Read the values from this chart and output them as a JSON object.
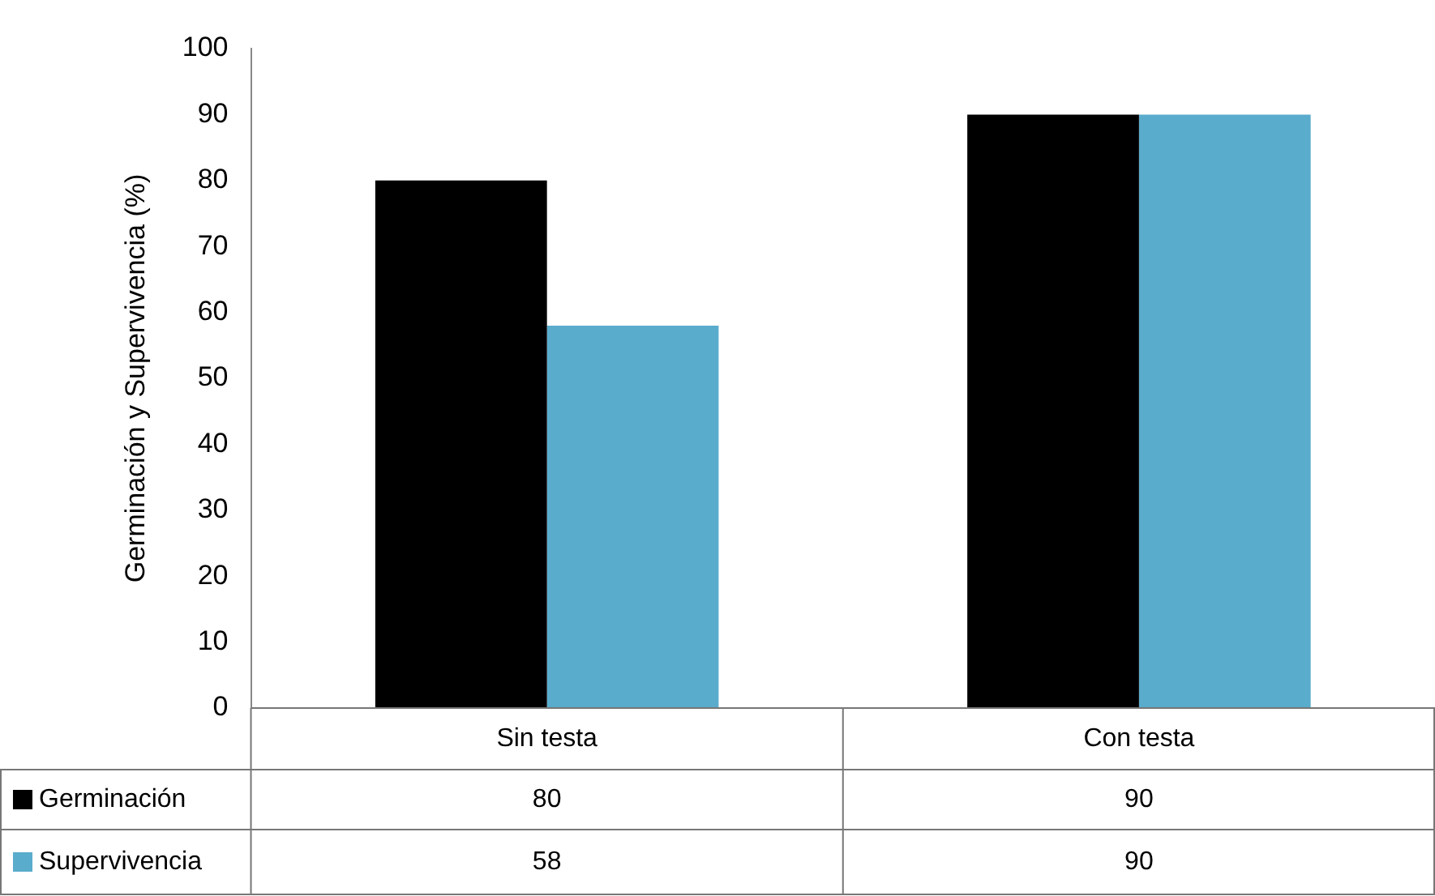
{
  "chart_data": {
    "type": "bar",
    "ylabel": "Germinación y Supervivencia (%)",
    "categories": [
      "Sin testa",
      "Con testa"
    ],
    "series": [
      {
        "name": "Germinación",
        "color": "#000000",
        "values": [
          80,
          90
        ]
      },
      {
        "name": "Supervivencia",
        "color": "#5aaccc",
        "values": [
          58,
          90
        ]
      }
    ],
    "ylim": [
      0,
      100
    ],
    "yticks": [
      0,
      10,
      20,
      30,
      40,
      50,
      60,
      70,
      80,
      90,
      100
    ],
    "grid": false,
    "legend": "bottom",
    "data_labels": true
  }
}
